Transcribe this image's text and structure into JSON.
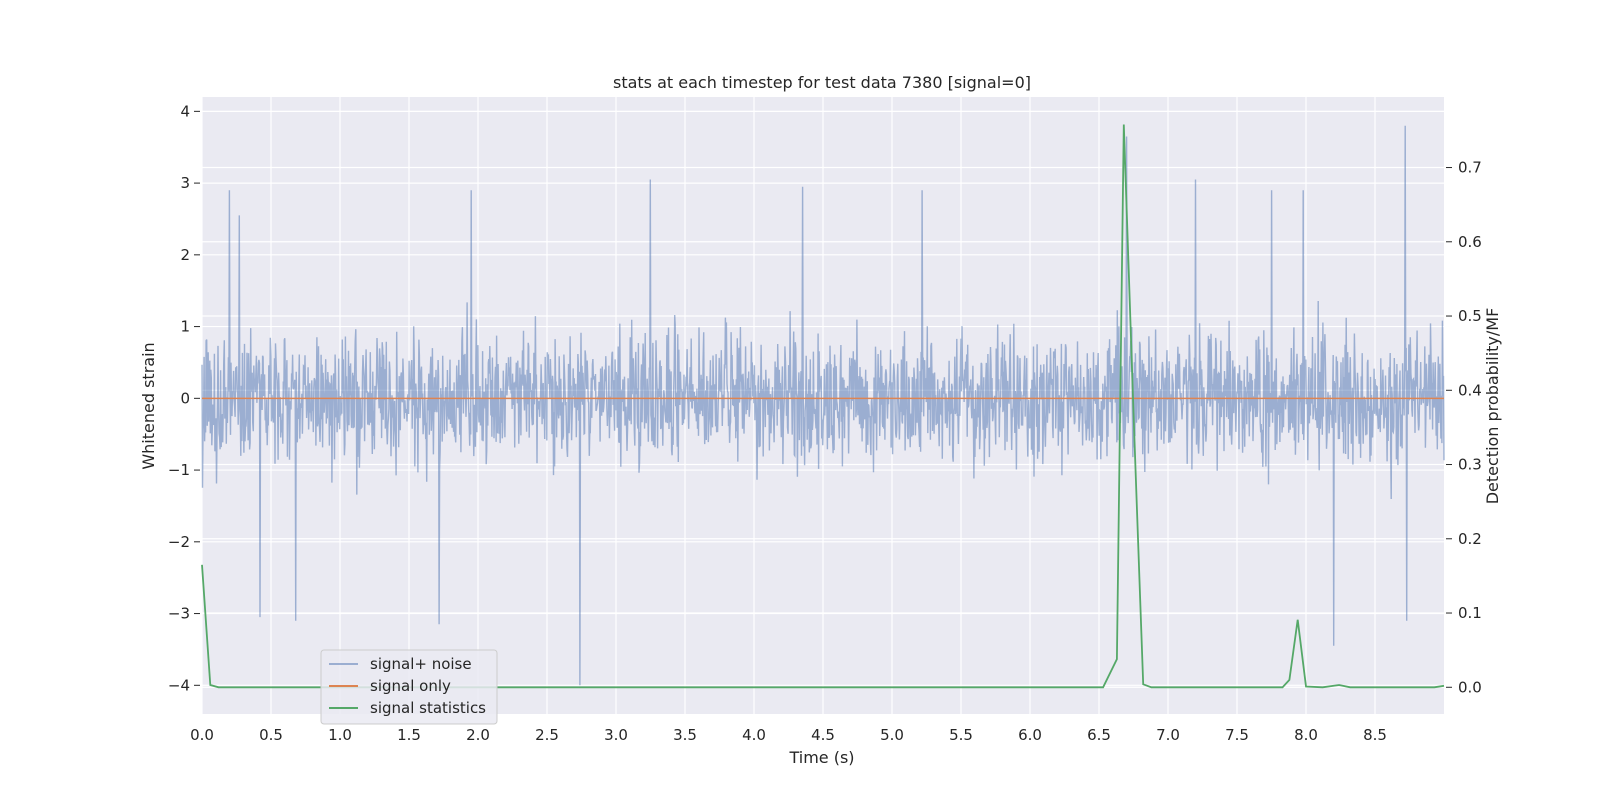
{
  "chart_data": {
    "type": "line",
    "title": "stats at each timestep for test data 7380 [signal=0]",
    "xlabel": "Time (s)",
    "ylabel": "Whitened strain",
    "y2label": "Detection probability/MF",
    "xlim": [
      0.0,
      9.0
    ],
    "ylim": [
      -4.4,
      4.2
    ],
    "y2lim": [
      -0.036,
      0.795
    ],
    "x_ticks": [
      "0.0",
      "0.5",
      "1.0",
      "1.5",
      "2.0",
      "2.5",
      "3.0",
      "3.5",
      "4.0",
      "4.5",
      "5.0",
      "5.5",
      "6.0",
      "6.5",
      "7.0",
      "7.5",
      "8.0",
      "8.5"
    ],
    "y_ticks": [
      "4",
      "3",
      "2",
      "1",
      "0",
      "−1",
      "−2",
      "−3",
      "−4"
    ],
    "y2_ticks": [
      "0.7",
      "0.6",
      "0.5",
      "0.4",
      "0.3",
      "0.2",
      "0.1",
      "0.0"
    ],
    "grid": true,
    "legend_position": "lower-left",
    "series": [
      {
        "name": "signal+ noise",
        "axis": "left",
        "color": "#4c72b0",
        "description_envelope": {
          "typical_range": [
            -1.3,
            1.3
          ],
          "max": 3.8,
          "min": -4.0
        },
        "peaks": [
          {
            "x": 0.2,
            "y": 2.9
          },
          {
            "x": 0.27,
            "y": 2.55
          },
          {
            "x": 0.42,
            "y": -3.05
          },
          {
            "x": 0.68,
            "y": -3.1
          },
          {
            "x": 1.72,
            "y": -3.15
          },
          {
            "x": 1.95,
            "y": 2.9
          },
          {
            "x": 2.74,
            "y": -4.0
          },
          {
            "x": 3.25,
            "y": 3.05
          },
          {
            "x": 4.35,
            "y": 2.95
          },
          {
            "x": 5.22,
            "y": 2.9
          },
          {
            "x": 6.7,
            "y": 3.65
          },
          {
            "x": 7.2,
            "y": 3.05
          },
          {
            "x": 7.75,
            "y": 2.9
          },
          {
            "x": 7.98,
            "y": 2.9
          },
          {
            "x": 8.2,
            "y": -3.45
          },
          {
            "x": 8.72,
            "y": 3.8
          },
          {
            "x": 8.73,
            "y": -3.1
          }
        ]
      },
      {
        "name": "signal only",
        "axis": "left",
        "color": "#dd8452",
        "x": [
          0.0,
          9.0
        ],
        "y": [
          0.0,
          0.0
        ]
      },
      {
        "name": "signal statistics",
        "axis": "right",
        "color": "#55a868",
        "x": [
          0.0,
          0.06,
          0.12,
          6.53,
          6.63,
          6.68,
          6.75,
          6.82,
          6.88,
          7.83,
          7.88,
          7.94,
          8.0,
          8.12,
          8.24,
          8.32,
          8.93,
          9.0
        ],
        "y": [
          0.165,
          0.003,
          0.0,
          0.0,
          0.038,
          0.758,
          0.37,
          0.004,
          0.0,
          0.0,
          0.01,
          0.091,
          0.001,
          0.0,
          0.003,
          0.0,
          0.0,
          0.002
        ]
      }
    ]
  }
}
